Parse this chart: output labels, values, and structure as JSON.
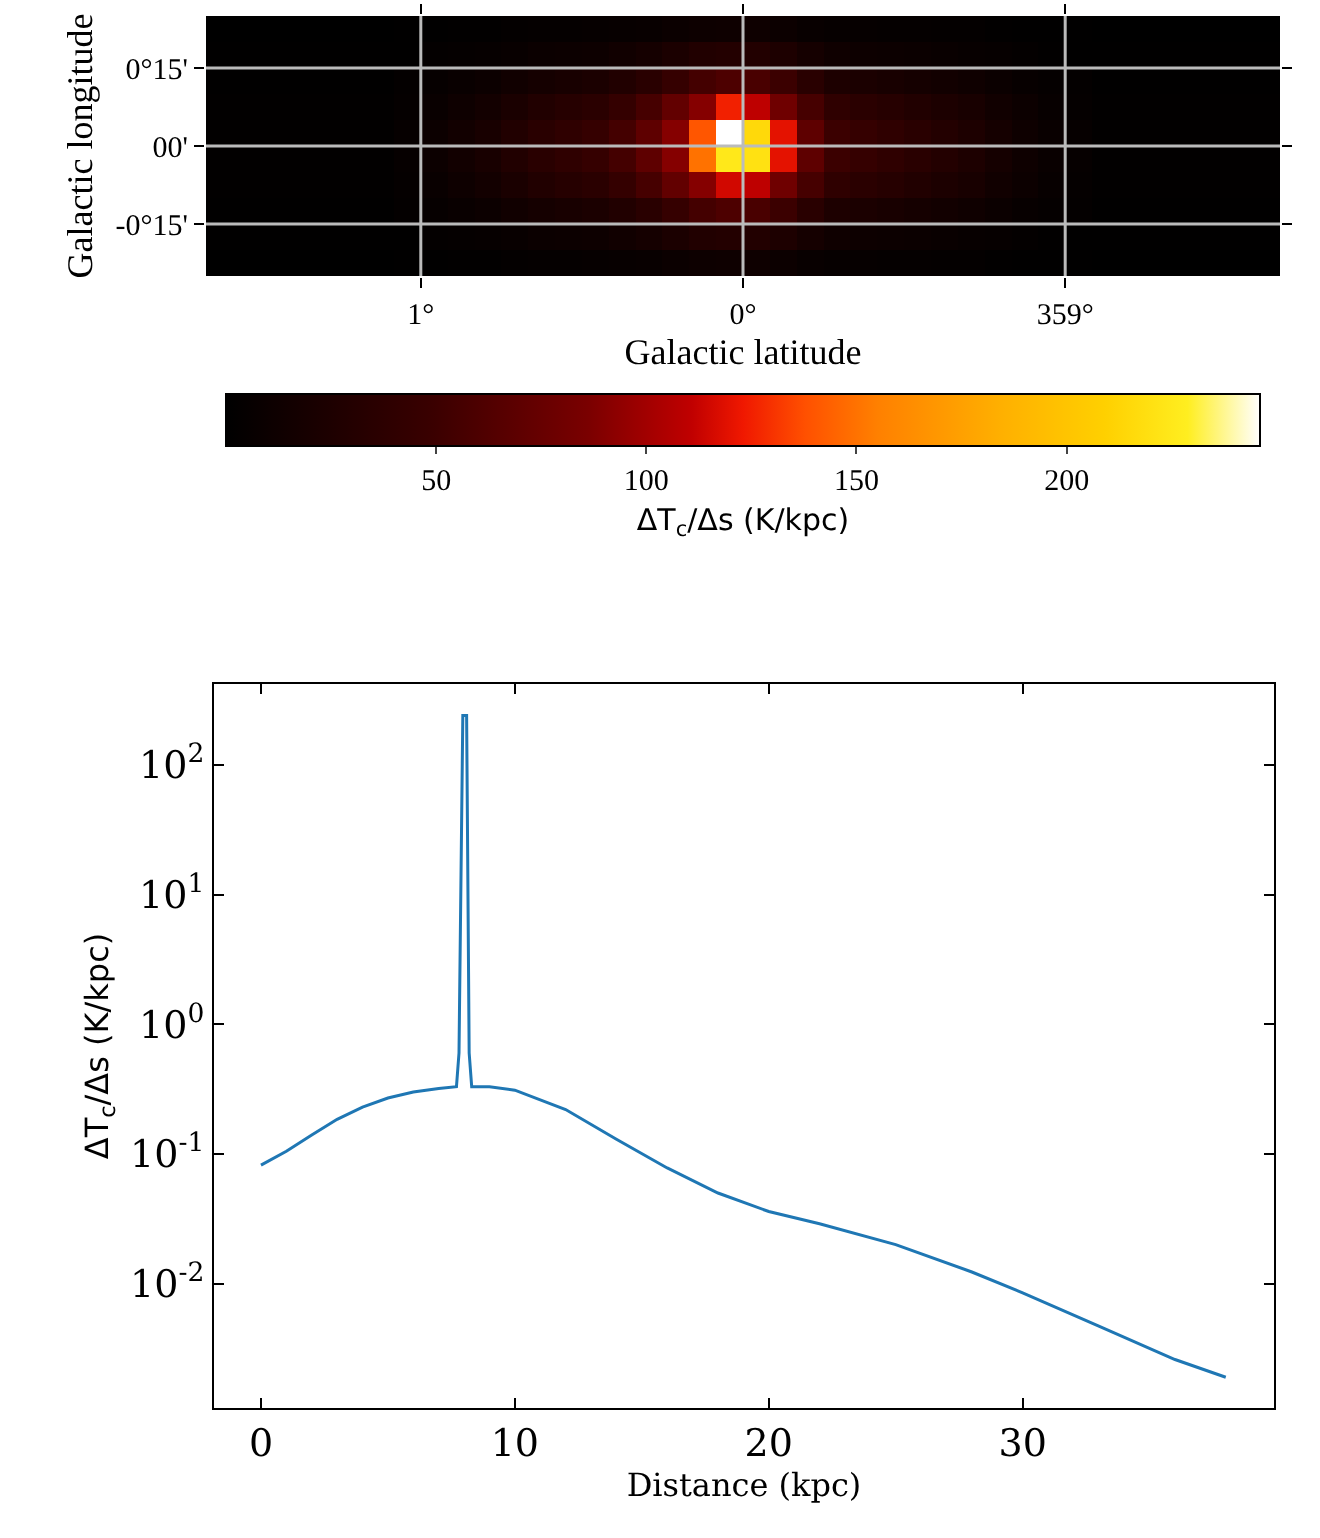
{
  "chart_data": [
    {
      "type": "heatmap",
      "xlabel": "Galactic latitude",
      "ylabel": "Galactic longitude",
      "clabel": "ΔT$_{c}$/Δs (K/kpc)",
      "categories": [
        null,
        null,
        null,
        null,
        null,
        null,
        null,
        null,
        "1°",
        null,
        null,
        null,
        null,
        null,
        null,
        null,
        null,
        null,
        null,
        null,
        "0°",
        null,
        null,
        null,
        null,
        null,
        null,
        null,
        null,
        null,
        null,
        null,
        "359°",
        null,
        null,
        null,
        null,
        null,
        null,
        null
      ],
      "y_categories": [
        null,
        null,
        "0°15'",
        null,
        null,
        "00'",
        null,
        null,
        "-0°15'",
        null
      ],
      "grid": true,
      "clim": [
        0,
        246
      ],
      "cticks": [
        50,
        100,
        150,
        200
      ],
      "cells": [
        [
          0,
          0,
          0,
          0,
          0,
          0,
          0,
          1,
          1,
          2,
          2,
          3,
          4,
          4,
          5,
          6,
          7,
          9,
          11,
          12,
          12,
          10,
          7,
          5,
          5,
          4,
          4,
          3,
          3,
          2,
          1,
          1,
          1,
          0,
          0,
          0,
          0,
          0,
          0,
          0
        ],
        [
          1,
          1,
          1,
          1,
          1,
          1,
          1,
          1,
          3,
          4,
          5,
          7,
          9,
          10,
          11,
          14,
          18,
          23,
          28,
          30,
          29,
          25,
          18,
          13,
          11,
          10,
          9,
          8,
          6,
          5,
          3,
          2,
          1,
          1,
          1,
          1,
          1,
          1,
          1,
          1
        ],
        [
          1,
          1,
          1,
          1,
          1,
          1,
          1,
          3,
          5,
          8,
          10,
          14,
          18,
          20,
          23,
          28,
          35,
          45,
          55,
          60,
          58,
          50,
          35,
          25,
          23,
          20,
          18,
          15,
          13,
          9,
          6,
          4,
          3,
          1,
          1,
          1,
          1,
          1,
          1,
          1
        ],
        [
          2,
          2,
          2,
          2,
          2,
          2,
          2,
          4,
          8,
          12,
          16,
          22,
          28,
          32,
          36,
          44,
          56,
          72,
          90,
          125,
          110,
          80,
          56,
          40,
          36,
          32,
          28,
          24,
          20,
          14,
          10,
          6,
          4,
          2,
          2,
          2,
          2,
          2,
          2,
          2
        ],
        [
          2,
          2,
          2,
          2,
          2,
          2,
          2,
          5,
          10,
          15,
          20,
          28,
          35,
          40,
          45,
          55,
          70,
          90,
          140,
          246,
          215,
          120,
          70,
          50,
          45,
          40,
          35,
          30,
          25,
          18,
          12,
          8,
          5,
          2,
          2,
          2,
          2,
          2,
          2,
          2
        ],
        [
          2,
          2,
          2,
          2,
          2,
          2,
          2,
          5,
          10,
          15,
          20,
          28,
          35,
          40,
          45,
          55,
          70,
          90,
          150,
          225,
          220,
          120,
          70,
          50,
          45,
          40,
          35,
          30,
          25,
          18,
          12,
          8,
          5,
          2,
          2,
          2,
          2,
          2,
          2,
          2
        ],
        [
          2,
          2,
          2,
          2,
          2,
          2,
          2,
          4,
          8,
          12,
          16,
          22,
          28,
          32,
          36,
          44,
          56,
          72,
          90,
          115,
          110,
          80,
          56,
          40,
          36,
          32,
          28,
          24,
          20,
          14,
          10,
          6,
          4,
          2,
          2,
          2,
          2,
          2,
          2,
          2
        ],
        [
          1,
          1,
          1,
          1,
          1,
          1,
          1,
          3,
          5,
          8,
          10,
          14,
          18,
          20,
          23,
          28,
          35,
          45,
          55,
          60,
          58,
          50,
          35,
          25,
          23,
          20,
          18,
          15,
          13,
          9,
          6,
          4,
          3,
          1,
          1,
          1,
          1,
          1,
          1,
          1
        ],
        [
          1,
          1,
          1,
          1,
          1,
          1,
          1,
          1,
          3,
          4,
          5,
          7,
          9,
          10,
          11,
          14,
          18,
          23,
          28,
          30,
          29,
          25,
          18,
          13,
          11,
          10,
          9,
          8,
          6,
          5,
          3,
          2,
          1,
          1,
          1,
          1,
          1,
          1,
          1,
          1
        ],
        [
          0,
          0,
          0,
          0,
          0,
          0,
          0,
          1,
          1,
          2,
          2,
          3,
          4,
          4,
          5,
          6,
          7,
          9,
          11,
          12,
          12,
          10,
          7,
          5,
          5,
          4,
          4,
          3,
          3,
          2,
          1,
          1,
          1,
          0,
          0,
          0,
          0,
          0,
          0,
          0
        ]
      ]
    },
    {
      "type": "line",
      "xlabel": "Distance (kpc)",
      "ylabel": "ΔT$_{c}$/Δs (K/kpc)",
      "log": "y",
      "x": [
        0,
        1,
        2,
        3,
        4,
        5,
        6,
        7,
        7.7,
        7.8,
        7.95,
        8.1,
        8.2,
        8.3,
        9,
        10,
        12,
        14,
        16,
        18,
        20,
        22,
        25,
        28,
        30,
        33,
        36,
        38
      ],
      "series": [
        {
          "color": "#1f77b4",
          "values": [
            0.082,
            0.105,
            0.14,
            0.185,
            0.23,
            0.27,
            0.3,
            0.32,
            0.33,
            0.6,
            240,
            240,
            0.6,
            0.33,
            0.33,
            0.31,
            0.22,
            0.13,
            0.078,
            0.05,
            0.036,
            0.029,
            0.02,
            0.0123,
            0.0085,
            0.0047,
            0.0026,
            0.0019
          ]
        }
      ],
      "xlim": [
        -1.85,
        39.9
      ],
      "xticks": [
        0,
        10,
        20,
        30
      ],
      "ylim": [
        0.0011,
        420
      ],
      "yticks": [
        {
          "value": 0.01,
          "label": "10$^{-2}$"
        },
        {
          "value": 0.1,
          "label": "10$^{-1}$"
        },
        {
          "value": 1,
          "label": "10$^{0}$"
        },
        {
          "value": 10,
          "label": "10$^{1}$"
        },
        {
          "value": 100,
          "label": "10$^{2}$"
        }
      ],
      "marker": "none",
      "line_style": "solid",
      "grid": false
    }
  ]
}
